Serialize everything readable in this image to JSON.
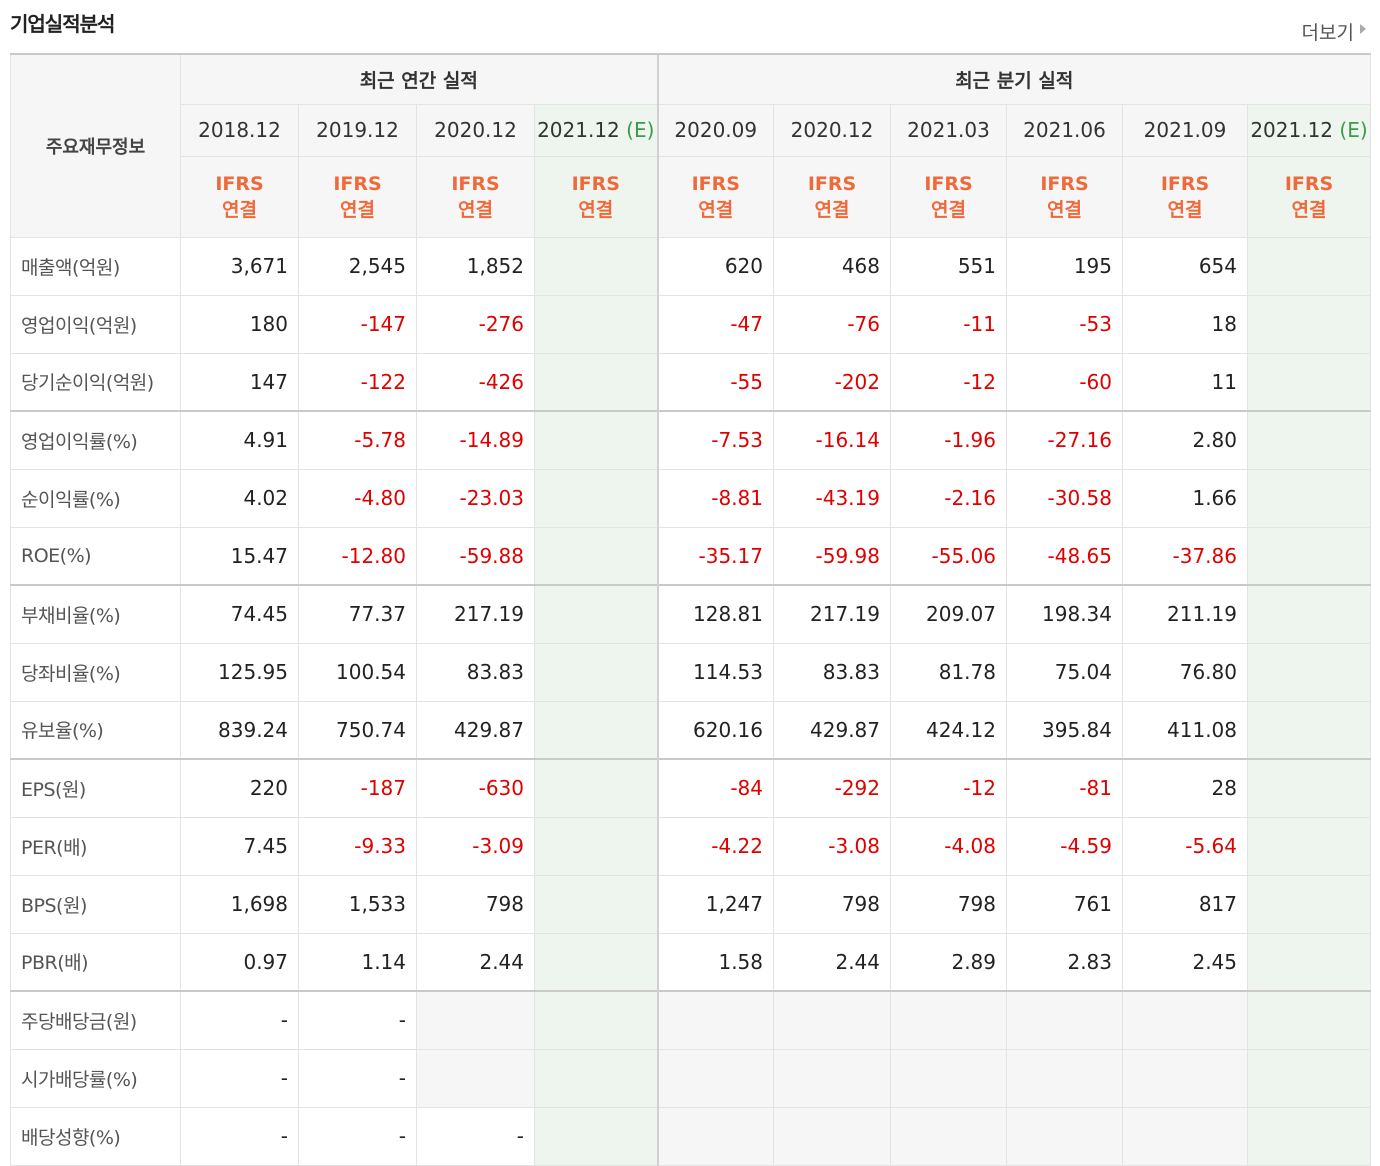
{
  "header": {
    "title": "기업실적분석",
    "more": "더보기"
  },
  "table": {
    "corner": "주요재무정보",
    "groups": [
      {
        "title": "최근 연간 실적",
        "columns": [
          {
            "period": "2018.12",
            "standard": "IFRS",
            "scope": "연결"
          },
          {
            "period": "2019.12",
            "standard": "IFRS",
            "scope": "연결"
          },
          {
            "period": "2020.12",
            "standard": "IFRS",
            "scope": "연결"
          },
          {
            "period": "2021.12",
            "estimate": "(E)",
            "standard": "IFRS",
            "scope": "연결"
          }
        ]
      },
      {
        "title": "최근 분기 실적",
        "columns": [
          {
            "period": "2020.09",
            "standard": "IFRS",
            "scope": "연결"
          },
          {
            "period": "2020.12",
            "standard": "IFRS",
            "scope": "연결"
          },
          {
            "period": "2021.03",
            "standard": "IFRS",
            "scope": "연결"
          },
          {
            "period": "2021.06",
            "standard": "IFRS",
            "scope": "연결"
          },
          {
            "period": "2021.09",
            "standard": "IFRS",
            "scope": "연결"
          },
          {
            "period": "2021.12",
            "estimate": "(E)",
            "standard": "IFRS",
            "scope": "연결"
          }
        ]
      }
    ],
    "row_groups": [
      [
        {
          "label": "매출액(억원)",
          "values": [
            "3,671",
            "2,545",
            "1,852",
            null,
            "620",
            "468",
            "551",
            "195",
            "654",
            null
          ]
        },
        {
          "label": "영업이익(억원)",
          "values": [
            "180",
            "-147",
            "-276",
            null,
            "-47",
            "-76",
            "-11",
            "-53",
            "18",
            null
          ]
        },
        {
          "label": "당기순이익(억원)",
          "values": [
            "147",
            "-122",
            "-426",
            null,
            "-55",
            "-202",
            "-12",
            "-60",
            "11",
            null
          ]
        }
      ],
      [
        {
          "label": "영업이익률(%)",
          "values": [
            "4.91",
            "-5.78",
            "-14.89",
            null,
            "-7.53",
            "-16.14",
            "-1.96",
            "-27.16",
            "2.80",
            null
          ]
        },
        {
          "label": "순이익률(%)",
          "values": [
            "4.02",
            "-4.80",
            "-23.03",
            null,
            "-8.81",
            "-43.19",
            "-2.16",
            "-30.58",
            "1.66",
            null
          ]
        },
        {
          "label": "ROE(%)",
          "values": [
            "15.47",
            "-12.80",
            "-59.88",
            null,
            "-35.17",
            "-59.98",
            "-55.06",
            "-48.65",
            "-37.86",
            null
          ]
        }
      ],
      [
        {
          "label": "부채비율(%)",
          "values": [
            "74.45",
            "77.37",
            "217.19",
            null,
            "128.81",
            "217.19",
            "209.07",
            "198.34",
            "211.19",
            null
          ]
        },
        {
          "label": "당좌비율(%)",
          "values": [
            "125.95",
            "100.54",
            "83.83",
            null,
            "114.53",
            "83.83",
            "81.78",
            "75.04",
            "76.80",
            null
          ]
        },
        {
          "label": "유보율(%)",
          "values": [
            "839.24",
            "750.74",
            "429.87",
            null,
            "620.16",
            "429.87",
            "424.12",
            "395.84",
            "411.08",
            null
          ]
        }
      ],
      [
        {
          "label": "EPS(원)",
          "values": [
            "220",
            "-187",
            "-630",
            null,
            "-84",
            "-292",
            "-12",
            "-81",
            "28",
            null
          ]
        },
        {
          "label": "PER(배)",
          "values": [
            "7.45",
            "-9.33",
            "-3.09",
            null,
            "-4.22",
            "-3.08",
            "-4.08",
            "-4.59",
            "-5.64",
            null
          ]
        },
        {
          "label": "BPS(원)",
          "values": [
            "1,698",
            "1,533",
            "798",
            null,
            "1,247",
            "798",
            "798",
            "761",
            "817",
            null
          ]
        },
        {
          "label": "PBR(배)",
          "values": [
            "0.97",
            "1.14",
            "2.44",
            null,
            "1.58",
            "2.44",
            "2.89",
            "2.83",
            "2.45",
            null
          ]
        }
      ],
      [
        {
          "label": "주당배당금(원)",
          "values": [
            "-",
            "-",
            null,
            null,
            null,
            null,
            null,
            null,
            null,
            null
          ]
        },
        {
          "label": "시가배당률(%)",
          "values": [
            "-",
            "-",
            null,
            null,
            null,
            null,
            null,
            null,
            null,
            null
          ]
        },
        {
          "label": "배당성향(%)",
          "values": [
            "-",
            "-",
            "-",
            null,
            null,
            null,
            null,
            null,
            null,
            null
          ]
        }
      ]
    ]
  }
}
